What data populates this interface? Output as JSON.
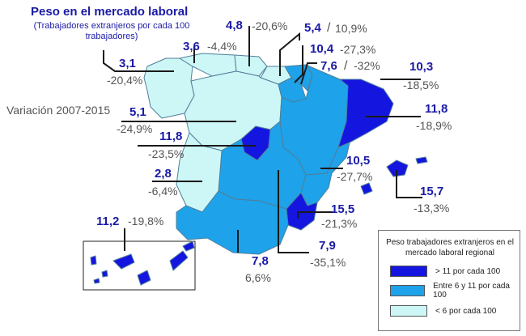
{
  "title": "Peso en el mercado laboral",
  "subtitle": "(Trabajadores extranjeros por cada 100 trabajadores)",
  "variation_caption": "Variación 2007-2015",
  "colors": {
    "high": "#1515e0",
    "mid": "#1ea2ea",
    "low": "#cdf6f6",
    "border": "#4f7f9a"
  },
  "regions": {
    "galicia": {
      "value": "3,1",
      "change": "-20,4%"
    },
    "asturias": {
      "value": "3,6",
      "change": "-4,4%"
    },
    "cantabria": {
      "value": "4,8",
      "change": "-20,6%"
    },
    "pais_vasco": {
      "value": "5,4",
      "change": "10,9%"
    },
    "navarra": {
      "value": "10,4",
      "change": "-27,3%"
    },
    "la_rioja": {
      "value": "7,6",
      "change": "-32%"
    },
    "cataluna": {
      "value": "10,3",
      "change": "-18,5%"
    },
    "aragon": {
      "value": "11,8",
      "change": "-18,9%"
    },
    "castilla_leon": {
      "value": "5,1",
      "change": "-24,9%"
    },
    "madrid": {
      "value": "11,8",
      "change": "-23,5%"
    },
    "extremadura": {
      "value": "2,8",
      "change": "-6,4%"
    },
    "valencia": {
      "value": "10,5",
      "change": "-27,7%"
    },
    "baleares": {
      "value": "15,7",
      "change": "-13,3%"
    },
    "murcia": {
      "value": "15,5",
      "change": "-21,3%"
    },
    "canarias": {
      "value": "11,2",
      "change": "-19,8%"
    },
    "andalucia": {
      "value": "7,8",
      "change": "6,6%"
    },
    "castilla_la_mancha": {
      "value": "7,9",
      "change": "-35,1%"
    }
  },
  "separators": {
    "slash": "/"
  },
  "legend": {
    "title": "Peso trabajadores extranjeros en el mercado laboral regional",
    "items": [
      {
        "label": "> 11 por cada 100",
        "color": "#1515e0"
      },
      {
        "label": "Entre 6 y 11 por cada 100",
        "color": "#1ea2ea"
      },
      {
        "label": "< 6 por cada 100",
        "color": "#cdf6f6"
      }
    ]
  }
}
